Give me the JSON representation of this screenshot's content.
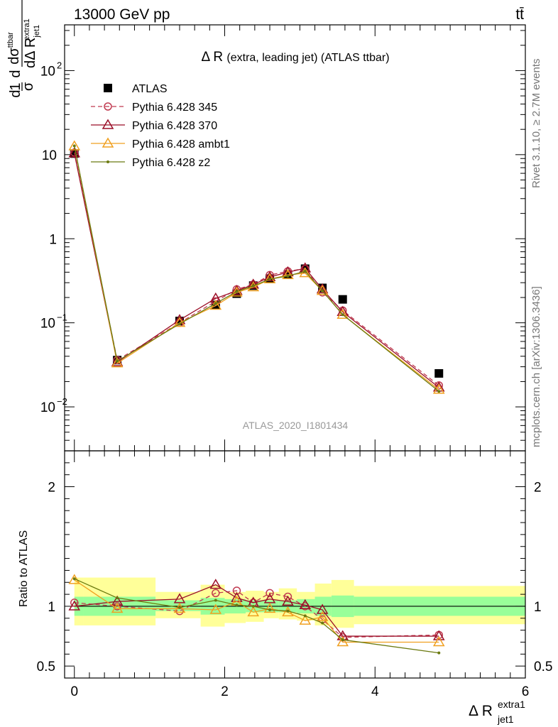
{
  "header": {
    "energy_label": "13000 GeV pp",
    "process_label": "tt̄"
  },
  "side_labels": {
    "rivet": "Rivet 3.1.10, ≥ 2.7M events",
    "mcplots": "mcplots.cern.ch [arXiv:1306.3436]"
  },
  "watermark": "ATLAS_2020_I1801434",
  "chart_data": [
    {
      "type": "line",
      "panel": "main",
      "title": "Δ R (extra, leading jet) (ATLAS ttbar)",
      "title_main": "Δ R",
      "title_rest": "(extra, leading jet) (ATLAS ttbar)",
      "ylabel": "1/σ dσ^{ttbar}/dΔR^{extra1}_{jet1}",
      "yscale": "log",
      "xlim": [
        -0.13,
        6.0
      ],
      "ylim": [
        0.003,
        350
      ],
      "yticks": [
        {
          "value": 100,
          "base": "10",
          "exp": "2"
        },
        {
          "value": 10,
          "base": "10",
          "exp": ""
        },
        {
          "value": 1,
          "base": "1",
          "exp": ""
        },
        {
          "value": 0.1,
          "base": "10",
          "exp": "−1"
        },
        {
          "value": 0.01,
          "base": "10",
          "exp": "−2"
        }
      ],
      "legend_position": "top-left",
      "series": [
        {
          "name": "ATLAS",
          "color": "#000000",
          "marker": "square",
          "x": [
            0.0,
            0.57,
            1.4,
            1.88,
            2.16,
            2.38,
            2.6,
            2.84,
            3.07,
            3.3,
            3.57,
            4.85
          ],
          "y": [
            10.3,
            0.036,
            0.105,
            0.163,
            0.222,
            0.277,
            0.335,
            0.375,
            0.44,
            0.26,
            0.19,
            0.025
          ]
        },
        {
          "name": "Pythia 6.428 345",
          "color": "#c0394f",
          "marker": "circle",
          "dash": "6,4",
          "x": [
            0.0,
            0.57,
            1.4,
            1.88,
            2.16,
            2.38,
            2.6,
            2.84,
            3.07,
            3.3,
            3.57,
            4.85
          ],
          "y": [
            10.6,
            0.036,
            0.1,
            0.18,
            0.25,
            0.285,
            0.37,
            0.41,
            0.44,
            0.23,
            0.14,
            0.018
          ]
        },
        {
          "name": "Pythia 6.428 370",
          "color": "#9b0f28",
          "marker": "triangle",
          "x": [
            0.0,
            0.57,
            1.4,
            1.88,
            2.16,
            2.38,
            2.6,
            2.84,
            3.07,
            3.3,
            3.57,
            4.85
          ],
          "y": [
            10.4,
            0.034,
            0.108,
            0.195,
            0.24,
            0.285,
            0.35,
            0.4,
            0.445,
            0.25,
            0.135,
            0.017
          ]
        },
        {
          "name": "Pythia 6.428 ambt1",
          "color": "#f0a020",
          "marker": "triangle",
          "x": [
            0.0,
            0.57,
            1.4,
            1.88,
            2.16,
            2.38,
            2.6,
            2.84,
            3.07,
            3.3,
            3.57,
            4.85
          ],
          "y": [
            12.6,
            0.033,
            0.1,
            0.16,
            0.23,
            0.265,
            0.33,
            0.37,
            0.39,
            0.24,
            0.125,
            0.016
          ]
        },
        {
          "name": "Pythia 6.428 z2",
          "color": "#6b7a10",
          "marker": "dot",
          "x": [
            0.0,
            0.57,
            1.4,
            1.88,
            2.16,
            2.38,
            2.6,
            2.84,
            3.07,
            3.3,
            3.57,
            4.85
          ],
          "y": [
            12.7,
            0.035,
            0.097,
            0.17,
            0.235,
            0.275,
            0.33,
            0.36,
            0.41,
            0.24,
            0.125,
            0.0153
          ]
        }
      ]
    },
    {
      "type": "line",
      "panel": "ratio",
      "xlabel": "Δ R^{extra1}_{jet1}",
      "xlabel_main": "Δ R",
      "xlabel_sup": "extra1",
      "xlabel_sub": "jet1",
      "ylabel": "Ratio to ATLAS",
      "xlim": [
        -0.13,
        6.0
      ],
      "ylim": [
        0.4,
        2.3
      ],
      "xticks": [
        "0",
        "2",
        "4",
        "6"
      ],
      "yticks": [
        "0.5",
        "1",
        "2"
      ],
      "bands": {
        "edges": [
          0.0,
          0.12,
          1.08,
          1.68,
          2.0,
          2.28,
          2.52,
          2.72,
          2.96,
          3.2,
          3.42,
          3.72,
          6.0
        ],
        "stat_lo": [
          0.92,
          0.92,
          0.96,
          0.93,
          0.94,
          0.95,
          0.95,
          0.95,
          0.94,
          0.92,
          0.91,
          0.92
        ],
        "stat_hi": [
          1.08,
          1.08,
          1.05,
          1.07,
          1.06,
          1.05,
          1.05,
          1.05,
          1.06,
          1.08,
          1.09,
          1.08
        ],
        "total_lo": [
          0.84,
          0.84,
          0.9,
          0.83,
          0.86,
          0.87,
          0.9,
          0.89,
          0.88,
          0.84,
          0.82,
          0.85
        ],
        "total_hi": [
          1.24,
          1.24,
          1.12,
          1.18,
          1.12,
          1.13,
          1.12,
          1.15,
          1.12,
          1.19,
          1.22,
          1.17
        ],
        "stat_color": "#99ff99",
        "total_color": "#ffff99"
      },
      "series": [
        {
          "name": "Pythia 6.428 345",
          "color": "#c0394f",
          "marker": "circle",
          "dash": "6,4",
          "x": [
            0.0,
            0.57,
            1.4,
            1.88,
            2.16,
            2.38,
            2.6,
            2.84,
            3.07,
            3.3,
            3.57,
            4.85
          ],
          "y": [
            1.03,
            1.0,
            0.96,
            1.11,
            1.13,
            1.03,
            1.11,
            1.08,
            1.0,
            0.89,
            0.74,
            0.76
          ]
        },
        {
          "name": "Pythia 6.428 370",
          "color": "#9b0f28",
          "marker": "triangle",
          "x": [
            0.0,
            0.57,
            1.4,
            1.88,
            2.16,
            2.38,
            2.6,
            2.84,
            3.07,
            3.3,
            3.57,
            4.85
          ],
          "y": [
            1.0,
            1.04,
            1.06,
            1.18,
            1.07,
            1.03,
            1.06,
            1.04,
            1.01,
            0.97,
            0.75,
            0.75
          ]
        },
        {
          "name": "Pythia 6.428 ambt1",
          "color": "#f0a020",
          "marker": "triangle",
          "x": [
            0.0,
            0.57,
            1.4,
            1.88,
            2.16,
            2.38,
            2.6,
            2.84,
            3.07,
            3.3,
            3.57,
            4.85
          ],
          "y": [
            1.22,
            0.98,
            0.98,
            0.97,
            1.04,
            0.95,
            0.98,
            0.95,
            0.88,
            0.91,
            0.7,
            0.7
          ]
        },
        {
          "name": "Pythia 6.428 z2",
          "color": "#6b7a10",
          "marker": "dot",
          "x": [
            0.0,
            0.57,
            1.4,
            1.88,
            2.16,
            2.38,
            2.6,
            2.84,
            3.07,
            3.3,
            3.57,
            4.85
          ],
          "y": [
            1.23,
            1.07,
            0.99,
            1.05,
            1.01,
            1.0,
            0.97,
            0.96,
            0.92,
            0.86,
            0.72,
            0.61
          ]
        }
      ]
    }
  ]
}
